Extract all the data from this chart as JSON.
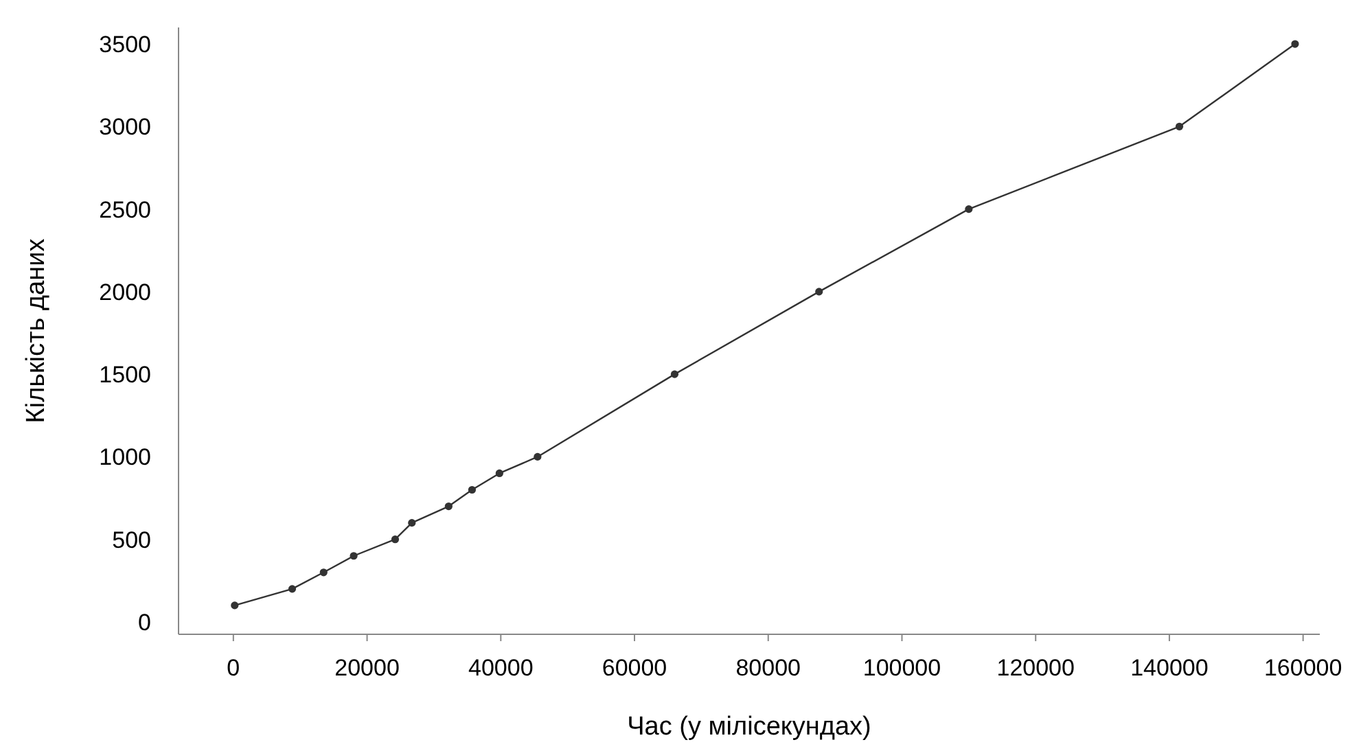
{
  "chart_data": {
    "type": "line",
    "xlabel": "Час (у мілісекундах)",
    "ylabel": "Кількість даних",
    "x": [
      200,
      8800,
      13500,
      18000,
      24200,
      26700,
      32200,
      35700,
      39800,
      45500,
      66000,
      87600,
      110000,
      141500,
      158800
    ],
    "series": [
      {
        "color": "#333333",
        "values": [
          100,
          200,
          300,
          400,
          500,
          600,
          700,
          800,
          900,
          1000,
          1500,
          2000,
          2500,
          3000,
          3500
        ]
      }
    ],
    "xlim": [
      -8200,
      162500
    ],
    "xticks": [
      0,
      20000,
      40000,
      60000,
      80000,
      100000,
      120000,
      140000,
      160000
    ],
    "ylim": [
      -75,
      3600
    ],
    "yticks": [
      0,
      500,
      1000,
      1500,
      2000,
      2500,
      3000,
      3500
    ],
    "grid": false,
    "marker": "circle",
    "line_style": "solid"
  }
}
